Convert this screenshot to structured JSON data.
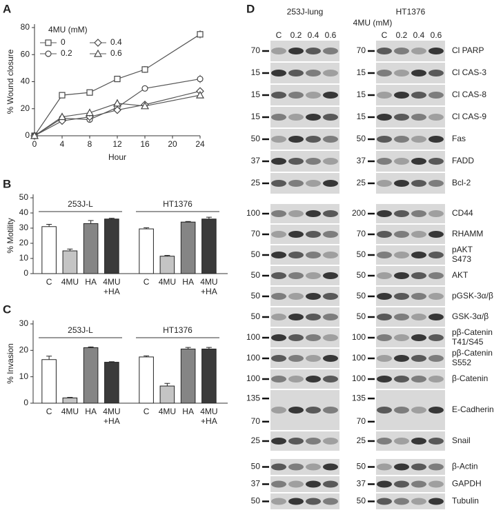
{
  "chart_data": [
    {
      "type": "line",
      "panel": "A",
      "xlabel": "Hour",
      "ylabel": "% Wound closure",
      "legend_title": "4MU (mM)",
      "x": [
        0,
        4,
        8,
        12,
        16,
        24
      ],
      "xlim": [
        0,
        24
      ],
      "xticks": [
        0,
        4,
        8,
        12,
        16,
        20,
        24
      ],
      "ylim": [
        0,
        80
      ],
      "yticks": [
        0,
        20,
        40,
        60,
        80
      ],
      "series": [
        {
          "name": "0",
          "marker": "square",
          "color": "#555555",
          "values": [
            0,
            30,
            32,
            42,
            49,
            75
          ],
          "errors": [
            0,
            2,
            1.5,
            2,
            2.5,
            3
          ]
        },
        {
          "name": "0.2",
          "marker": "circle",
          "color": "#555555",
          "values": [
            0,
            13,
            12,
            21,
            35,
            42
          ],
          "errors": [
            0,
            1,
            1.5,
            2,
            1.5,
            3
          ]
        },
        {
          "name": "0.4",
          "marker": "diamond",
          "color": "#555555",
          "values": [
            0,
            11,
            14,
            19,
            23,
            33
          ],
          "errors": [
            0,
            2,
            4,
            2,
            2,
            2
          ]
        },
        {
          "name": "0.6",
          "marker": "triangle",
          "color": "#555555",
          "values": [
            0,
            14,
            17,
            24,
            22,
            30
          ],
          "errors": [
            0,
            2,
            3,
            3,
            2,
            2
          ]
        }
      ]
    },
    {
      "type": "bar",
      "panel": "B",
      "ylabel": "% Motility",
      "ylim": [
        0,
        50
      ],
      "yticks": [
        0,
        10,
        20,
        30,
        40,
        50
      ],
      "categories": [
        [
          "C"
        ],
        [
          "4MU"
        ],
        [
          "HA"
        ],
        [
          "4MU",
          "+HA"
        ]
      ],
      "colors": [
        "#ffffff",
        "#c4c4c4",
        "#858585",
        "#3a3a3a"
      ],
      "groups": [
        {
          "name": "253J-L",
          "values": [
            31,
            15,
            33,
            36
          ],
          "errors": [
            1.5,
            1.2,
            2,
            0.5
          ]
        },
        {
          "name": "HT1376",
          "values": [
            29.5,
            11.5,
            34,
            36
          ],
          "errors": [
            0.7,
            0.5,
            0.4,
            1.2
          ]
        }
      ]
    },
    {
      "type": "bar",
      "panel": "C",
      "ylabel": "% Invasion",
      "ylim": [
        0,
        30
      ],
      "yticks": [
        0,
        10,
        20,
        30
      ],
      "categories": [
        [
          "C"
        ],
        [
          "4MU"
        ],
        [
          "HA"
        ],
        [
          "4MU",
          "+HA"
        ]
      ],
      "colors": [
        "#ffffff",
        "#c4c4c4",
        "#858585",
        "#3a3a3a"
      ],
      "groups": [
        {
          "name": "253J-L",
          "values": [
            16.5,
            2,
            21,
            15.5
          ],
          "errors": [
            1.3,
            0.2,
            0.3,
            0.2
          ]
        },
        {
          "name": "HT1376",
          "values": [
            17.5,
            6.5,
            20.5,
            20.5
          ],
          "errors": [
            0.4,
            1,
            0.6,
            0.6
          ]
        }
      ]
    }
  ],
  "blot": {
    "panel": "D",
    "columns": [
      "253J-lung",
      "HT1376"
    ],
    "treatment": "4MU (mM)",
    "lanes": [
      "C",
      "0.2",
      "0.4",
      "0.6"
    ],
    "sections": [
      [
        {
          "label": [
            "Cl PARP"
          ],
          "left": [
            70
          ],
          "right": [
            70
          ]
        },
        {
          "label": [
            "Cl CAS-3"
          ],
          "left": [
            15
          ],
          "right": [
            15
          ]
        },
        {
          "label": [
            "Cl CAS-8"
          ],
          "left": [
            15
          ],
          "right": [
            15
          ]
        },
        {
          "label": [
            "Cl CAS-9"
          ],
          "left": [
            15
          ],
          "right": [
            15
          ]
        },
        {
          "label": [
            "Fas"
          ],
          "left": [
            50
          ],
          "right": [
            50
          ]
        },
        {
          "label": [
            "FADD"
          ],
          "left": [
            37
          ],
          "right": [
            37
          ]
        },
        {
          "label": [
            "Bcl-2"
          ],
          "left": [
            25
          ],
          "right": [
            25
          ]
        }
      ],
      [
        {
          "label": [
            "CD44"
          ],
          "left": [
            100
          ],
          "right": [
            200
          ]
        },
        {
          "label": [
            "RHAMM"
          ],
          "left": [
            70
          ],
          "right": [
            70
          ]
        },
        {
          "label": [
            "pAKT",
            "S473"
          ],
          "left": [
            50
          ],
          "right": [
            50
          ]
        },
        {
          "label": [
            "AKT"
          ],
          "left": [
            50
          ],
          "right": [
            50
          ]
        },
        {
          "label": [
            "pGSK-3α/β"
          ],
          "left": [
            50
          ],
          "right": [
            50
          ]
        },
        {
          "label": [
            "GSK-3α/β"
          ],
          "left": [
            50
          ],
          "right": [
            50
          ]
        },
        {
          "label": [
            "pβ-Catenin",
            "T41/S45"
          ],
          "left": [
            100
          ],
          "right": [
            100
          ]
        },
        {
          "label": [
            "pβ-Catenin",
            "S552"
          ],
          "left": [
            100
          ],
          "right": [
            100
          ]
        },
        {
          "label": [
            "β-Catenin"
          ],
          "left": [
            100
          ],
          "right": [
            100
          ]
        },
        {
          "label": [
            "E-Cadherin"
          ],
          "left": [
            135,
            70
          ],
          "right": [
            135,
            70
          ]
        },
        {
          "label": [
            "Snail"
          ],
          "left": [
            25
          ],
          "right": [
            25
          ]
        }
      ],
      [
        {
          "label": [
            "β-Actin"
          ],
          "left": [
            50
          ],
          "right": [
            50
          ]
        },
        {
          "label": [
            "GAPDH"
          ],
          "left": [
            37
          ],
          "right": [
            37
          ]
        },
        {
          "label": [
            "Tubulin"
          ],
          "left": [
            50
          ],
          "right": [
            50
          ]
        }
      ]
    ]
  }
}
